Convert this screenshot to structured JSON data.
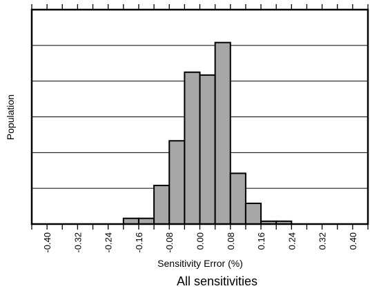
{
  "chart_data": {
    "type": "bar",
    "histogram": true,
    "xlabel": "Sensitivity Error (%)",
    "ylabel": "Population",
    "caption": "All sensitivities",
    "xlim": [
      -0.44,
      0.44
    ],
    "ylim": [
      0,
      6
    ],
    "x_ticks": [
      "-0.40",
      "-0.32",
      "-0.24",
      "-0.16",
      "-0.08",
      "0.00",
      "0.08",
      "0.16",
      "0.24",
      "0.32",
      "0.40"
    ],
    "x_tick_values": [
      -0.4,
      -0.32,
      -0.24,
      -0.16,
      -0.08,
      0.0,
      0.08,
      0.16,
      0.24,
      0.32,
      0.4
    ],
    "y_tick_labels_shown": false,
    "grid": "horizontal",
    "bin_width": 0.04,
    "bins": [
      {
        "x0": -0.2,
        "x1": -0.16,
        "value": 0.16
      },
      {
        "x0": -0.16,
        "x1": -0.12,
        "value": 0.16
      },
      {
        "x0": -0.12,
        "x1": -0.08,
        "value": 1.08
      },
      {
        "x0": -0.08,
        "x1": -0.04,
        "value": 2.33
      },
      {
        "x0": -0.04,
        "x1": 0.0,
        "value": 4.25
      },
      {
        "x0": 0.0,
        "x1": 0.04,
        "value": 4.17
      },
      {
        "x0": 0.04,
        "x1": 0.08,
        "value": 5.08
      },
      {
        "x0": 0.08,
        "x1": 0.12,
        "value": 1.42
      },
      {
        "x0": 0.12,
        "x1": 0.16,
        "value": 0.58
      },
      {
        "x0": 0.16,
        "x1": 0.2,
        "value": 0.08
      },
      {
        "x0": 0.2,
        "x1": 0.24,
        "value": 0.08
      }
    ],
    "colors": {
      "bar_fill": "#a6a6a6",
      "bar_stroke": "#000000",
      "grid": "#000000"
    }
  }
}
